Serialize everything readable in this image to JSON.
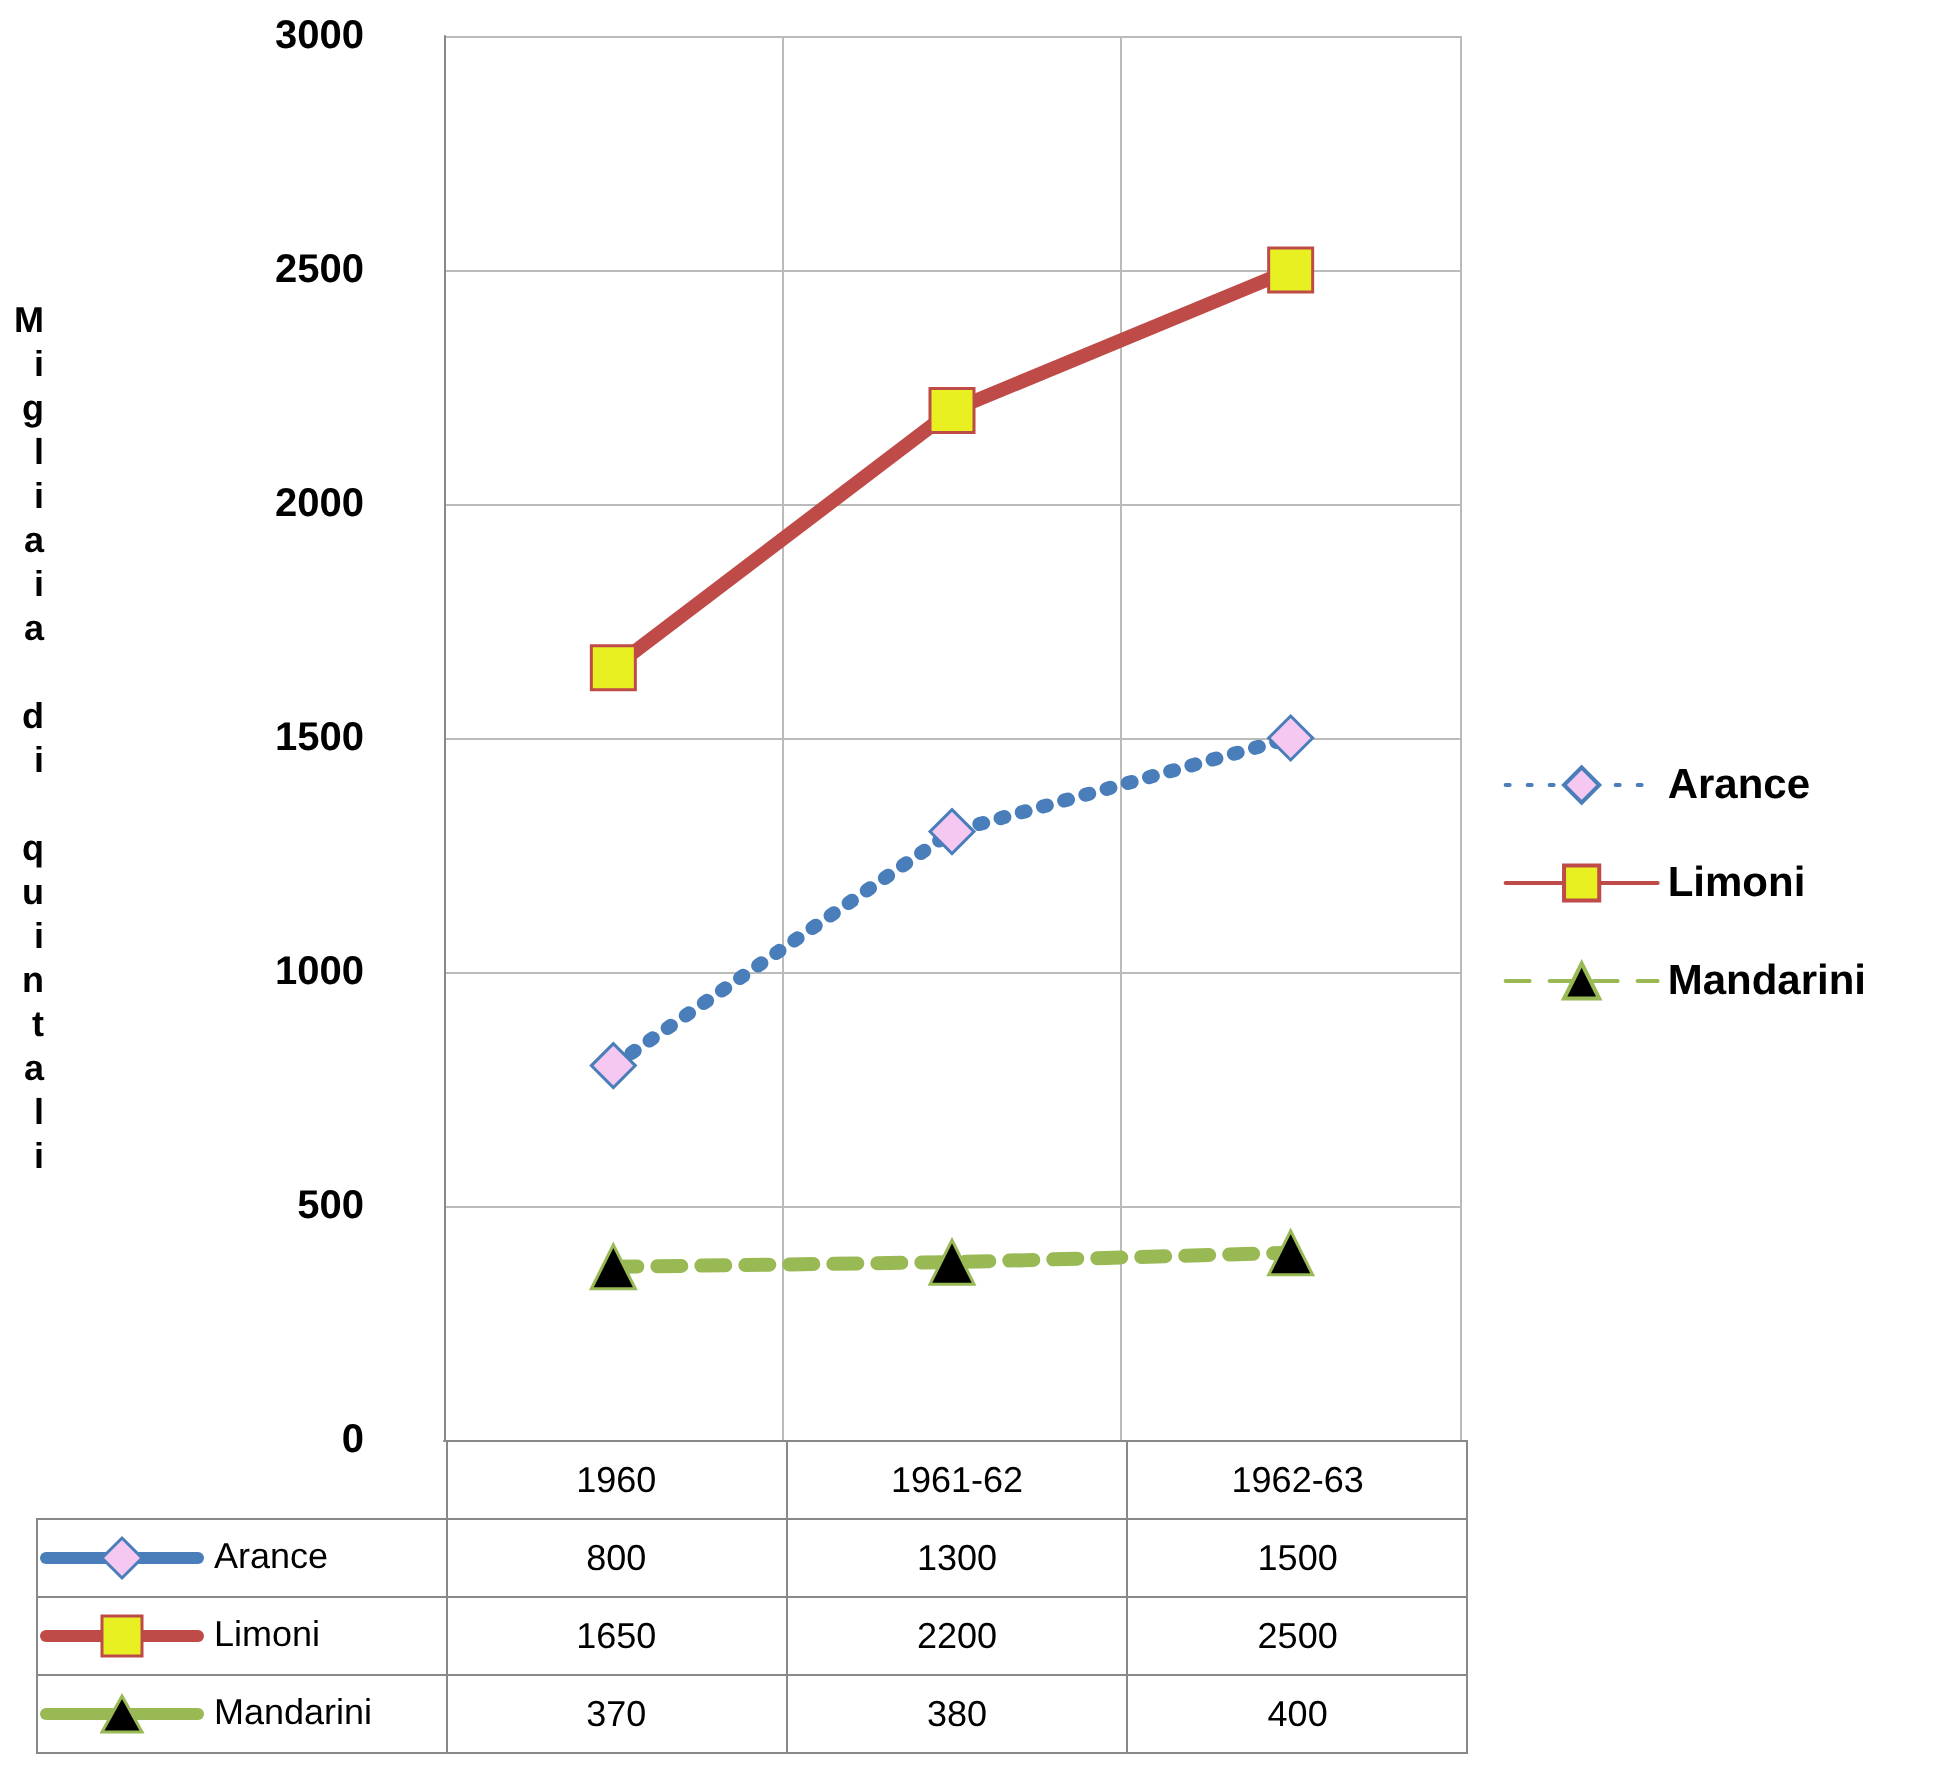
{
  "chart_data": {
    "type": "line",
    "ylabel": "Migliaia di quintali",
    "categories": [
      "1960",
      "1961-62",
      "1962-63"
    ],
    "series": [
      {
        "name": "Arance",
        "color": "#4a7ebb",
        "values": [
          800,
          1300,
          1500
        ],
        "marker": "diamond",
        "line_style": "dotted"
      },
      {
        "name": "Limoni",
        "color": "#be4b48",
        "values": [
          1650,
          2200,
          2500
        ],
        "marker": "square",
        "line_style": "solid"
      },
      {
        "name": "Mandarini",
        "color": "#98b954",
        "values": [
          370,
          380,
          400
        ],
        "marker": "triangle",
        "line_style": "dashed"
      }
    ],
    "ylim": [
      0,
      3000
    ],
    "yticks": [
      0,
      500,
      1000,
      1500,
      2000,
      2500,
      3000
    ],
    "grid": true,
    "legend": "right",
    "data_labels": true
  }
}
